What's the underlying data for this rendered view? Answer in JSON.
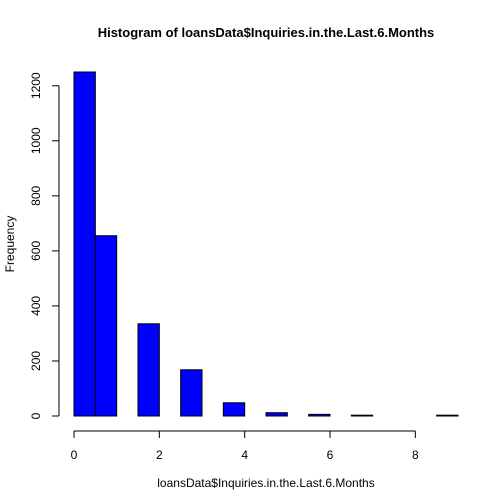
{
  "chart_data": {
    "type": "bar",
    "title": "Histogram of loansData$Inquiries.in.the.Last.6.Months",
    "xlabel": "loansData$Inquiries.in.the.Last.6.Months",
    "ylabel": "Frequency",
    "bin_edges": [
      0,
      0.5,
      1,
      1.5,
      2,
      2.5,
      3,
      3.5,
      4,
      4.5,
      5,
      5.5,
      6,
      6.5,
      7,
      7.5,
      8,
      8.5,
      9
    ],
    "values": [
      1250,
      655,
      0,
      335,
      0,
      168,
      0,
      48,
      0,
      12,
      0,
      6,
      0,
      3,
      0,
      0,
      0,
      3
    ],
    "xlim": [
      0,
      9
    ],
    "ylim": [
      0,
      1250
    ],
    "x_ticks": [
      0,
      2,
      4,
      6,
      8
    ],
    "y_ticks": [
      0,
      200,
      400,
      600,
      800,
      1000,
      1200
    ],
    "grid": false,
    "colors": {
      "bar_fill": "#0000ff",
      "bar_stroke": "#000000"
    }
  }
}
